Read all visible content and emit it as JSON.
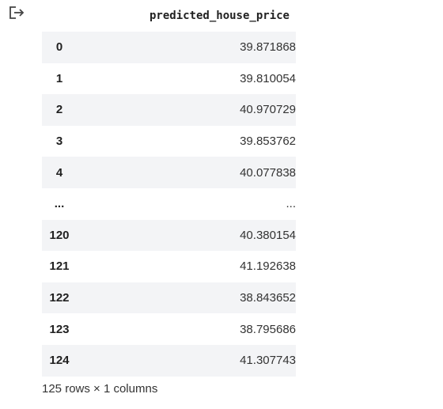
{
  "output": {
    "icon": "output-arrow-icon"
  },
  "dataframe": {
    "column": "predicted_house_price",
    "rows": [
      {
        "index": "0",
        "value": "39.871868"
      },
      {
        "index": "1",
        "value": "39.810054"
      },
      {
        "index": "2",
        "value": "40.970729"
      },
      {
        "index": "3",
        "value": "39.853762"
      },
      {
        "index": "4",
        "value": "40.077838"
      },
      {
        "index": "...",
        "value": "..."
      },
      {
        "index": "120",
        "value": "40.380154"
      },
      {
        "index": "121",
        "value": "41.192638"
      },
      {
        "index": "122",
        "value": "38.843652"
      },
      {
        "index": "123",
        "value": "38.795686"
      },
      {
        "index": "124",
        "value": "41.307743"
      }
    ],
    "summary": "125 rows × 1 columns"
  },
  "colors": {
    "stripe": "#f3f4f6",
    "text": "#212121"
  }
}
